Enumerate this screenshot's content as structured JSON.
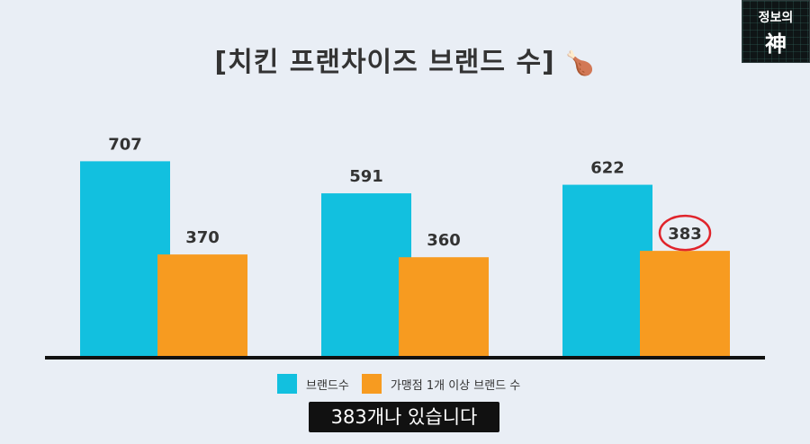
{
  "title": {
    "text": "[치킨 프랜차이즈 브랜드 수]",
    "emoji": "🍗"
  },
  "logo": {
    "line1": "정보의",
    "line2": "神"
  },
  "subtitle_caption": "383개나 있습니다",
  "colors": {
    "series1": "#12c0df",
    "series2": "#f79b20",
    "highlight_circle": "#e0242b",
    "axis": "#111111"
  },
  "chart_data": {
    "type": "bar",
    "title": "[치킨 프랜차이즈 브랜드 수]",
    "categories": [
      "",
      "",
      ""
    ],
    "series": [
      {
        "name": "브랜드수",
        "values": [
          707,
          591,
          622
        ]
      },
      {
        "name": "가맹점 1개 이상 브랜드 수",
        "values": [
          370,
          360,
          383
        ]
      }
    ],
    "ylim": [
      0,
      900
    ],
    "grid": false,
    "legend": "bottom",
    "annotations": [
      {
        "type": "circle",
        "series": 1,
        "index": 2,
        "value": 383
      }
    ]
  }
}
